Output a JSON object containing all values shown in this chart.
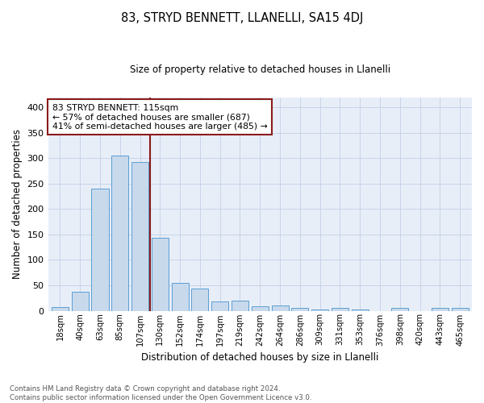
{
  "title": "83, STRYD BENNETT, LLANELLI, SA15 4DJ",
  "subtitle": "Size of property relative to detached houses in Llanelli",
  "xlabel": "Distribution of detached houses by size in Llanelli",
  "ylabel": "Number of detached properties",
  "bar_values": [
    7,
    38,
    240,
    305,
    292,
    144,
    54,
    44,
    19,
    20,
    8,
    11,
    5,
    3,
    5,
    2,
    0,
    5,
    0,
    5,
    5
  ],
  "bar_labels": [
    "18sqm",
    "40sqm",
    "63sqm",
    "85sqm",
    "107sqm",
    "130sqm",
    "152sqm",
    "174sqm",
    "197sqm",
    "219sqm",
    "242sqm",
    "264sqm",
    "286sqm",
    "309sqm",
    "331sqm",
    "353sqm",
    "376sqm",
    "398sqm",
    "420sqm",
    "443sqm",
    "465sqm"
  ],
  "bar_color": "#c8d9ec",
  "bar_edge_color": "#5a9fd4",
  "vline_x": 4.5,
  "vline_color": "#8b1a1a",
  "annotation_text": "83 STRYD BENNETT: 115sqm\n← 57% of detached houses are smaller (687)\n41% of semi-detached houses are larger (485) →",
  "annotation_box_color": "white",
  "annotation_box_edge": "#8b1a1a",
  "ylim": [
    0,
    420
  ],
  "yticks": [
    0,
    50,
    100,
    150,
    200,
    250,
    300,
    350,
    400
  ],
  "grid_color": "#c8d4e8",
  "bg_color": "#e8eef8",
  "footer": "Contains HM Land Registry data © Crown copyright and database right 2024.\nContains public sector information licensed under the Open Government Licence v3.0.",
  "num_bars": 21
}
